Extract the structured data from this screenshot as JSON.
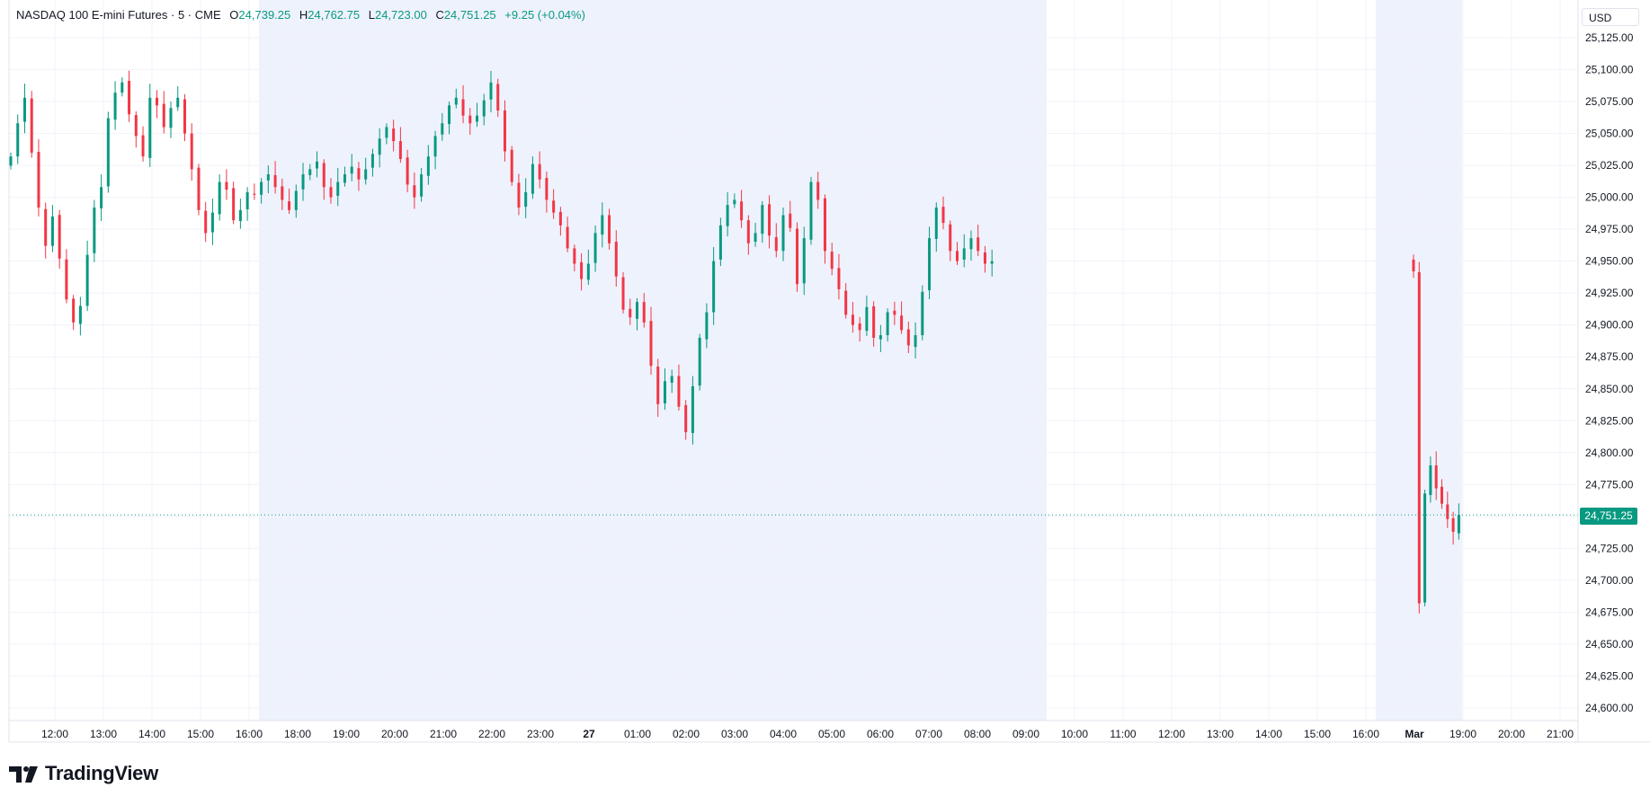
{
  "legend": {
    "symbol": "NASDAQ 100 E-mini Futures",
    "interval": "5",
    "exchange": "CME",
    "separator": "·",
    "open_label": "O",
    "open": "24,739.25",
    "high_label": "H",
    "high": "24,762.75",
    "low_label": "L",
    "low": "24,723.00",
    "close_label": "C",
    "close": "24,751.25",
    "change": "+9.25 (+0.04%)"
  },
  "currency": "USD",
  "last_price_label": "24,751.25",
  "brand": "TradingView",
  "colors": {
    "up": "#089981",
    "down": "#f23645",
    "session_shade": "#eef2fd",
    "grid": "#f0f3fa"
  },
  "chart_data": {
    "type": "candlestick",
    "x_ticks": [
      "12:00",
      "13:00",
      "14:00",
      "15:00",
      "16:00",
      "18:00",
      "19:00",
      "20:00",
      "21:00",
      "22:00",
      "23:00",
      "27",
      "01:00",
      "02:00",
      "03:00",
      "04:00",
      "05:00",
      "06:00",
      "07:00",
      "08:00",
      "09:00",
      "10:00",
      "11:00",
      "12:00",
      "13:00",
      "14:00",
      "15:00",
      "16:00",
      "Mar",
      "19:00",
      "20:00",
      "21:00"
    ],
    "y_ticks": [
      "25,125.00",
      "25,100.00",
      "25,075.00",
      "25,050.00",
      "25,025.00",
      "25,000.00",
      "24,975.00",
      "24,950.00",
      "24,925.00",
      "24,900.00",
      "24,875.00",
      "24,850.00",
      "24,825.00",
      "24,800.00",
      "24,775.00",
      "24,750.00",
      "24,725.00",
      "24,700.00",
      "24,675.00",
      "24,650.00",
      "24,625.00",
      "24,600.00"
    ],
    "y_range": [
      24590,
      25140
    ],
    "shaded_sessions": [
      [
        "16:00",
        "09:30"
      ],
      [
        "16:00",
        "18:00"
      ]
    ],
    "last_price": 24751.25,
    "series_close": [
      25032,
      25058,
      25078,
      25035,
      24992,
      24962,
      24985,
      24952,
      24920,
      24902,
      24915,
      24955,
      24992,
      25008,
      25062,
      25082,
      25090,
      25065,
      25048,
      25032,
      25078,
      25072,
      25055,
      25070,
      25078,
      25050,
      25022,
      24990,
      24972,
      24988,
      25012,
      25006,
      24982,
      24990,
      25004,
      25002,
      25012,
      25018,
      25008,
      24998,
      24990,
      25005,
      25018,
      25022,
      25028,
      25008,
      25000,
      25012,
      25018,
      25024,
      25014,
      25022,
      25034,
      25046,
      25055,
      25044,
      25030,
      25010,
      25000,
      25018,
      25032,
      25048,
      25058,
      25072,
      25078,
      25064,
      25058,
      25064,
      25076,
      25090,
      25068,
      25036,
      25012,
      24992,
      25004,
      25026,
      25014,
      24998,
      24988,
      24978,
      24960,
      24948,
      24936,
      24948,
      24972,
      24986,
      24964,
      24938,
      24912,
      24906,
      24918,
      24902,
      24868,
      24838,
      24856,
      24860,
      24836,
      24816,
      24852,
      24890,
      24910,
      24950,
      24978,
      24994,
      24998,
      24982,
      24964,
      24972,
      24994,
      24970,
      24958,
      24986,
      24976,
      24932,
      24968,
      25012,
      24998,
      24958,
      24944,
      24928,
      24908,
      24900,
      24896,
      24914,
      24890,
      24892,
      24910,
      24908,
      24896,
      24884,
      24892,
      24926,
      24968,
      24992,
      24980,
      24958,
      24950,
      24960,
      24968,
      24958,
      24948,
      24950,
      24942,
      24682,
      24768,
      24790,
      24772,
      24760,
      24748,
      24738,
      24751.25
    ]
  }
}
